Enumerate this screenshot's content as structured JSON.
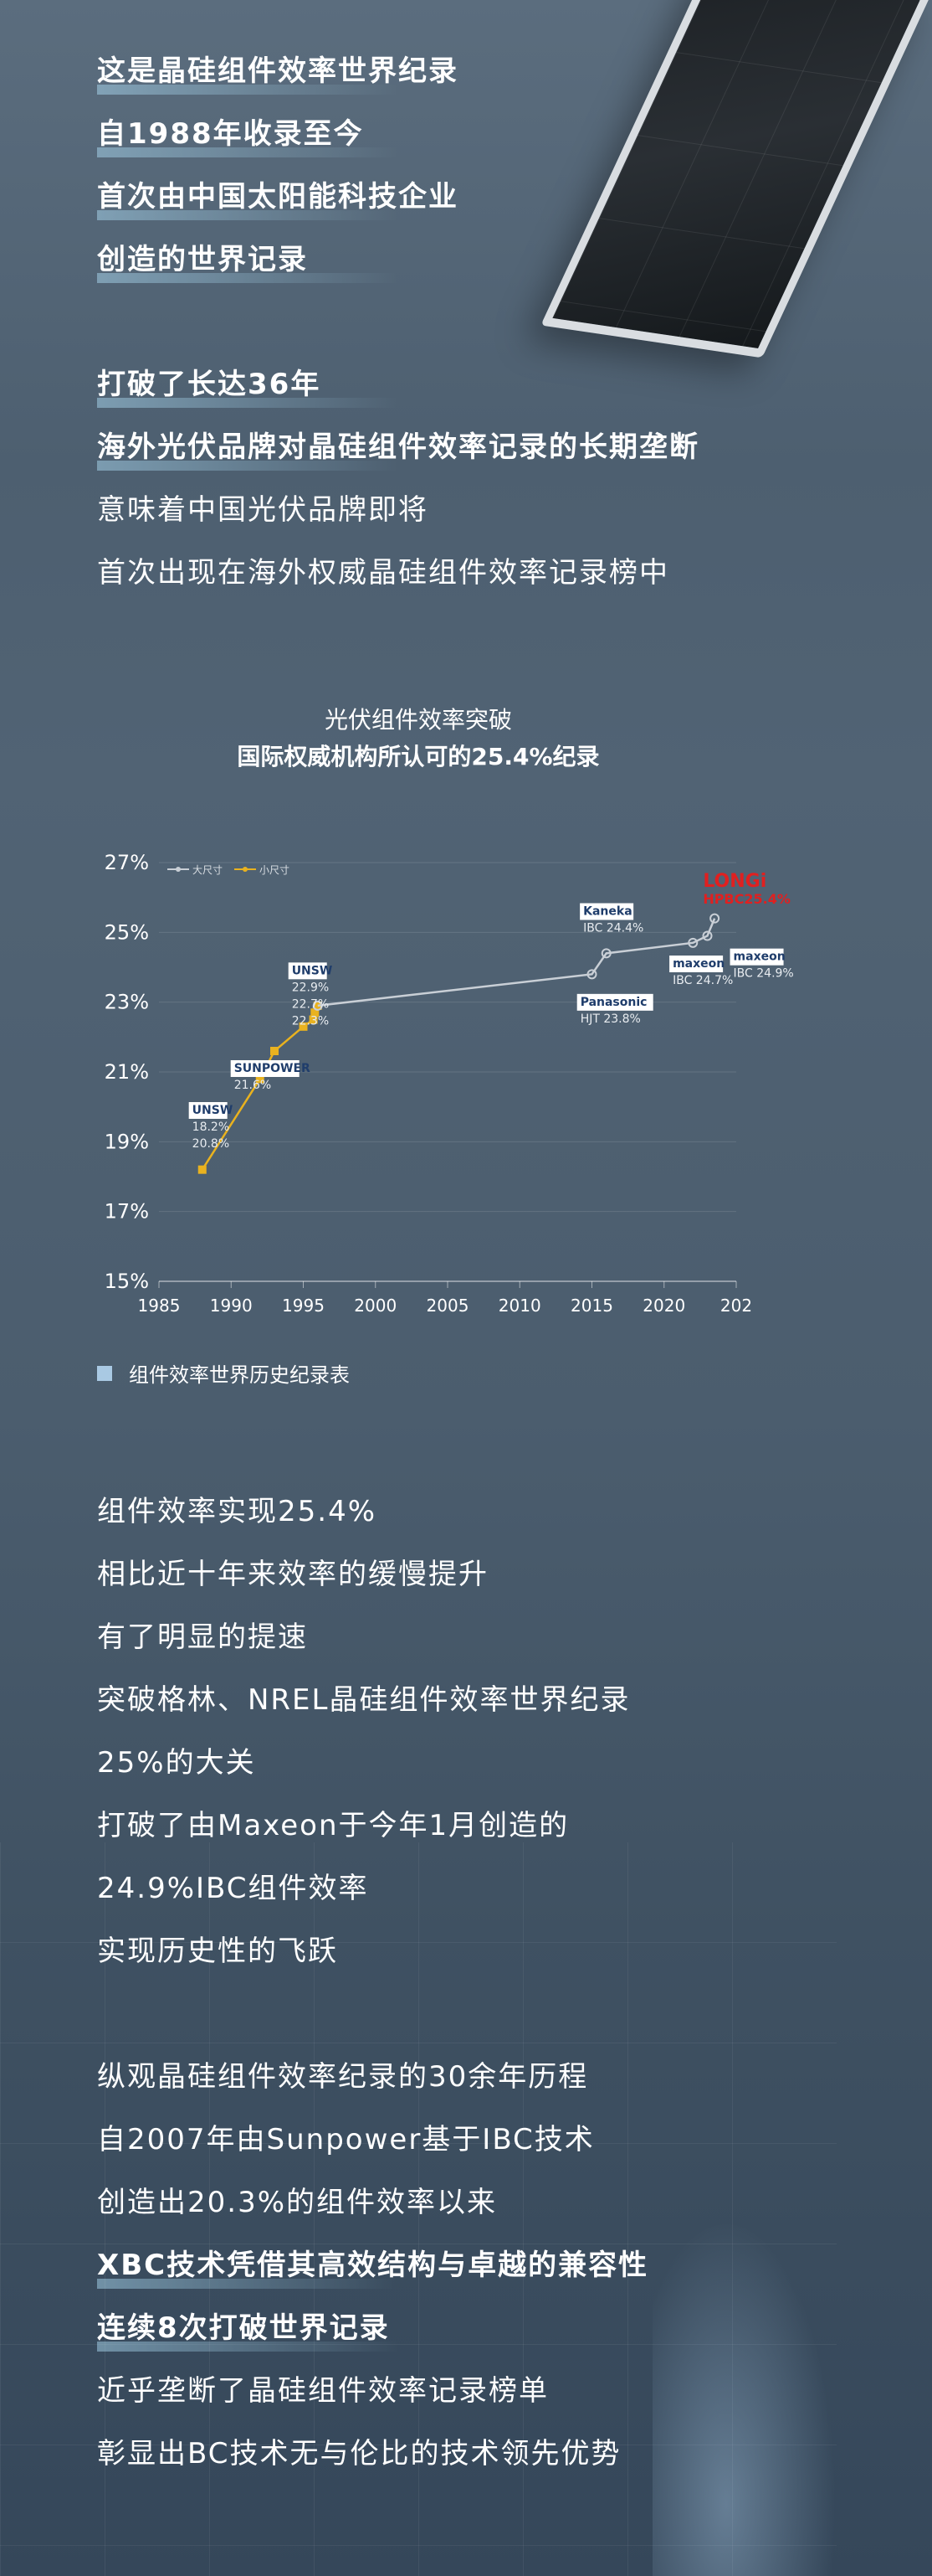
{
  "block1": [
    "这是晶硅组件效率世界纪录",
    "自1988年收录至今",
    "首次由中国太阳能科技企业",
    "创造的世界记录"
  ],
  "block2": [
    "打破了长达36年",
    "海外光伏品牌对晶硅组件效率记录的长期垄断",
    "意味着中国光伏品牌即将",
    "首次出现在海外权威晶硅组件效率记录榜中"
  ],
  "chart_header": {
    "line1": "光伏组件效率突破",
    "line2": "国际权威机构所认可的25.4%纪录"
  },
  "chart_data": {
    "type": "line",
    "title": "",
    "xlabel": "",
    "ylabel": "",
    "xlim": [
      1985,
      2025
    ],
    "ylim": [
      15,
      27
    ],
    "x_ticks": [
      "1985",
      "1990",
      "1995",
      "2000",
      "2005",
      "2010",
      "2015",
      "2020",
      "202"
    ],
    "y_ticks": [
      "15%",
      "17%",
      "19%",
      "21%",
      "23%",
      "25%",
      "27%"
    ],
    "grid": true,
    "legend_position": "top-left",
    "series": [
      {
        "name": "小尺寸",
        "color": "#e9b21f",
        "x": [
          1988,
          1992,
          1993,
          1995,
          1995.7,
          1995.8,
          1996
        ],
        "y": [
          18.2,
          20.8,
          21.6,
          22.3,
          22.5,
          22.7,
          22.9
        ]
      },
      {
        "name": "大尺寸",
        "color": "#c9cfd6",
        "x": [
          1996,
          2015,
          2016,
          2022,
          2023,
          2023.5
        ],
        "y": [
          22.9,
          23.8,
          24.4,
          24.7,
          24.9,
          25.4
        ]
      }
    ],
    "annotations": [
      {
        "lines": [
          "UNSW",
          "18.2%",
          "20.8%"
        ],
        "x": 1987.3,
        "y": 19.8
      },
      {
        "lines": [
          "SUNPOWER",
          "21.6%"
        ],
        "x": 1990.2,
        "y": 21.0
      },
      {
        "lines": [
          "UNSW",
          "22.9%",
          "22.7%",
          "22.3%"
        ],
        "x": 1994.2,
        "y": 23.8
      },
      {
        "lines": [
          "Kaneka",
          "IBC 24.4%"
        ],
        "x": 2014.4,
        "y": 25.5
      },
      {
        "lines": [
          "Panasonic",
          "HJT 23.8%"
        ],
        "x": 2014.2,
        "y": 22.9
      },
      {
        "lines": [
          "maxeon",
          "IBC 24.7%"
        ],
        "x": 2020.6,
        "y": 24.0
      },
      {
        "lines": [
          "maxeon",
          "IBC 24.9%"
        ],
        "x": 2024.8,
        "y": 24.2
      },
      {
        "lines": [
          "LONGi",
          "HPBC25.4%"
        ],
        "x": 2022.7,
        "y": 26.3
      }
    ]
  },
  "legend_caption": "组件效率世界历史纪录表",
  "block3": [
    "组件效率实现25.4%",
    "相比近十年来效率的缓慢提升",
    "有了明显的提速",
    "突破格林、NREL晶硅组件效率世界纪录",
    "25%的大关",
    "打破了由Maxeon于今年1月创造的",
    "24.9%IBC组件效率",
    "实现历史性的飞跃"
  ],
  "block4": [
    "纵观晶硅组件效率纪录的30余年历程",
    "自2007年由Sunpower基于IBC技术",
    "创造出20.3%的组件效率以来",
    "XBC技术凭借其高效结构与卓越的兼容性",
    "连续8次打破世界记录",
    "近乎垄断了晶硅组件效率记录榜单",
    "彰显出BC技术无与伦比的技术领先优势"
  ],
  "colors": {
    "small_size": "#e9b21f",
    "large_size": "#c9cfd6",
    "highlight_red": "#e02020",
    "legend_square": "#a9c9e3"
  }
}
